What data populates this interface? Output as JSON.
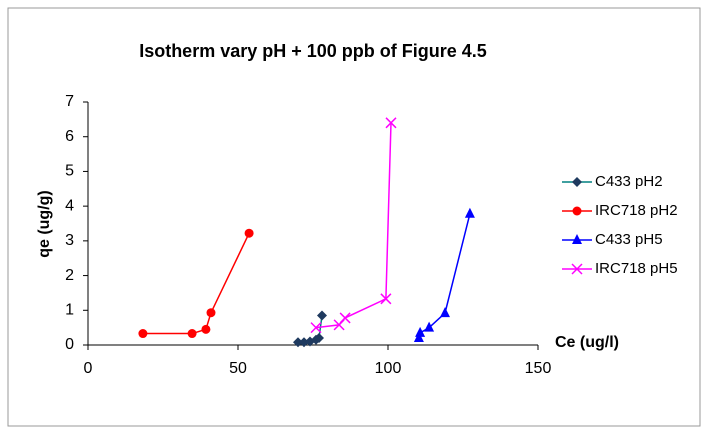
{
  "chart_data": {
    "type": "scatter",
    "title": "Isotherm vary pH + 100 ppb of Figure 4.5",
    "x_label": "Ce (ug/l)",
    "y_label": "qe (ug/g)",
    "xlim": [
      0,
      150
    ],
    "xticks": [
      0,
      50,
      100,
      150
    ],
    "ylim": [
      0,
      7
    ],
    "yticks": [
      0,
      1,
      2,
      3,
      4,
      5,
      6,
      7
    ],
    "lines": true,
    "legend": "right",
    "series": [
      {
        "name": "C433 pH2",
        "color": "#008080",
        "marker": "diamond",
        "marker_color": "#1f3a5f",
        "x": [
          70,
          72,
          74,
          76,
          77,
          78
        ],
        "values": [
          0.08,
          0.08,
          0.1,
          0.15,
          0.2,
          0.85
        ]
      },
      {
        "name": "IRC718 pH2",
        "color": "#ff0000",
        "marker": "circle",
        "marker_color": "#ff0000",
        "x": [
          18.3,
          34.7,
          39.3,
          41,
          53.7
        ],
        "values": [
          0.33,
          0.33,
          0.45,
          0.93,
          3.22
        ]
      },
      {
        "name": "C433 pH5",
        "color": "#0000ff",
        "marker": "triangle",
        "marker_color": "#0000ff",
        "x": [
          110.3,
          110.7,
          113.7,
          119,
          127.3
        ],
        "values": [
          0.2,
          0.35,
          0.5,
          0.92,
          3.78
        ]
      },
      {
        "name": "IRC718 pH5",
        "color": "#ff00ff",
        "marker": "x",
        "marker_color": "#ff00ff",
        "x": [
          76,
          83.7,
          85.7,
          99.3,
          101
        ],
        "values": [
          0.5,
          0.58,
          0.78,
          1.33,
          6.4
        ]
      }
    ]
  }
}
